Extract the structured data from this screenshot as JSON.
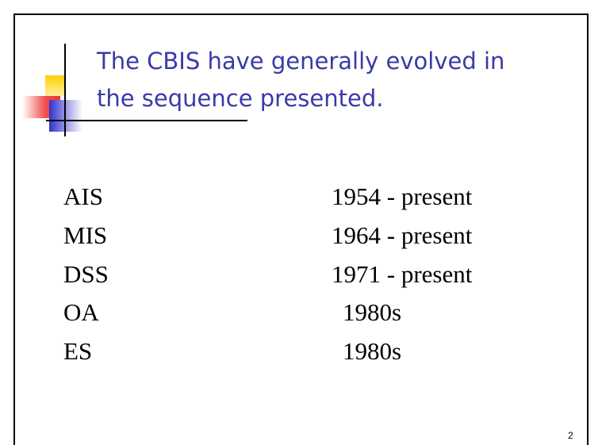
{
  "title": {
    "lines": [
      "The CBIS have generally evolved in",
      "the sequence presented."
    ]
  },
  "table": {
    "rows": [
      [
        "AIS",
        "1954 - present"
      ],
      [
        "MIS",
        "1964 - present"
      ],
      [
        "DSS",
        "1971 - present"
      ],
      [
        "OA",
        "1980s"
      ],
      [
        "ES",
        "1980s"
      ]
    ]
  },
  "page_number": "2"
}
